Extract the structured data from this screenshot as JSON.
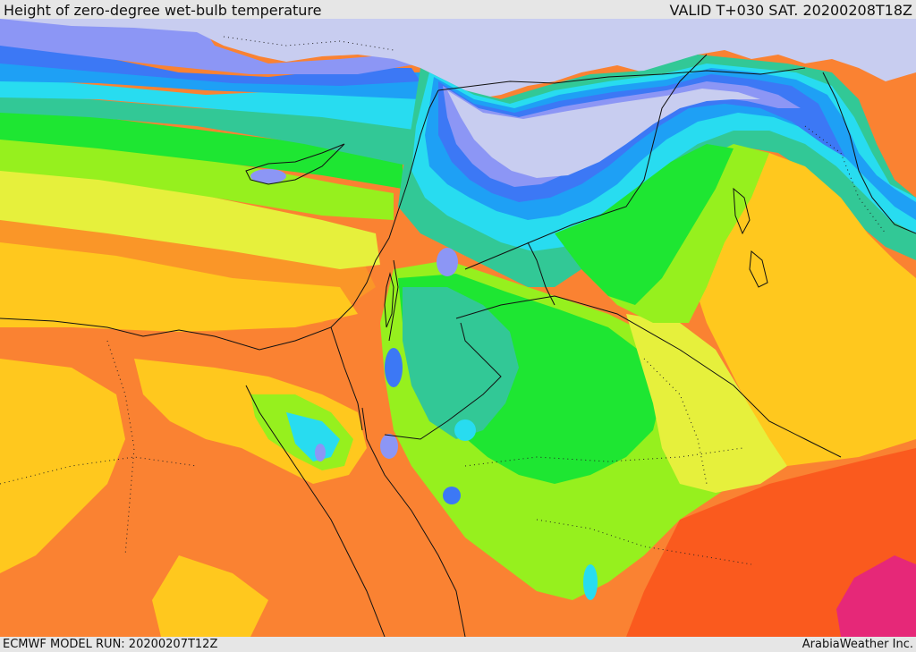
{
  "header": {
    "title": "Height of zero-degree wet-bulb temperature",
    "valid_time": "VALID T+030 SAT. 20200208T18Z"
  },
  "footer": {
    "model_run": "ECMWF MODEL RUN: 20200207T12Z",
    "credit": "ArabiaWeather Inc."
  },
  "map": {
    "colors": {
      "below_ground": "#c8cdf0",
      "level_1": "#8c96f5",
      "level_2": "#3c78f5",
      "level_3": "#1ea0f5",
      "level_4": "#28dcf0",
      "level_5": "#32c896",
      "level_6": "#1ee632",
      "level_7": "#96f01e",
      "level_8": "#e6f03c",
      "level_9": "#ffc81e",
      "level_10": "#fa9628",
      "level_11": "#fa8232",
      "level_12": "#fa5a1e",
      "level_13": "#e62878"
    }
  }
}
